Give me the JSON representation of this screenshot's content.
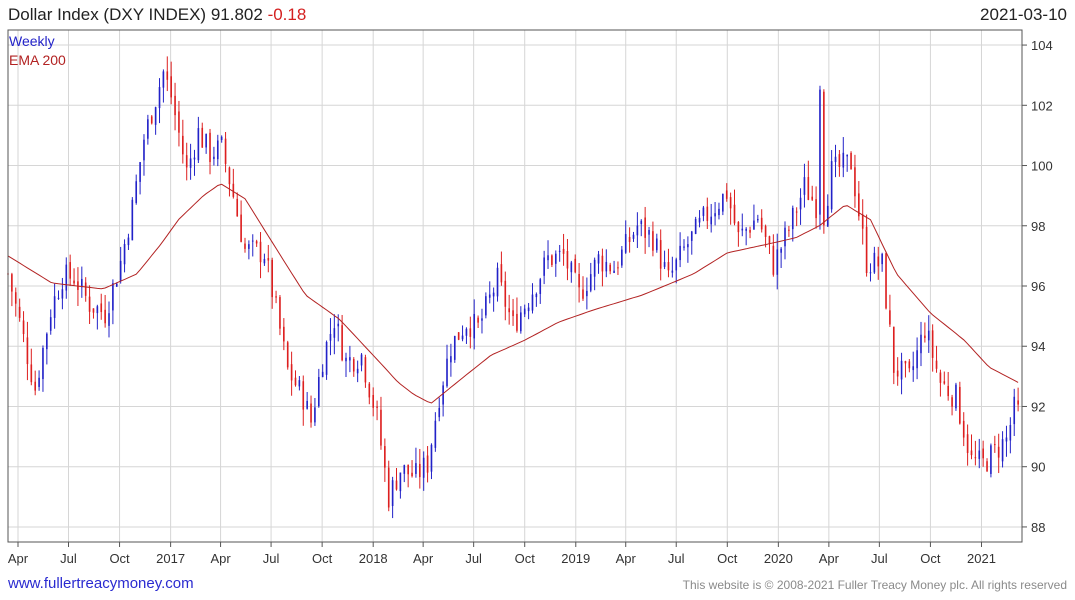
{
  "header": {
    "title": "Dollar Index (DXY INDEX)",
    "last": "91.802",
    "change": "-0.18",
    "date": "2021-03-10"
  },
  "footer": {
    "site": "www.fullertreacymoney.com",
    "copyright": "This website is © 2008-2021 Fuller Treacy Money plc. All rights reserved"
  },
  "legend": {
    "period": "Weekly",
    "ema_label": "EMA 200"
  },
  "colors": {
    "up": "#2222c8",
    "down": "#dd1f1f",
    "ema": "#b22222",
    "grid": "#d6d6d6",
    "frame": "#555555"
  },
  "chart_data": {
    "type": "candlestick",
    "frequency": "weekly",
    "y_range": [
      87.5,
      104.5
    ],
    "y_ticks": [
      88,
      90,
      92,
      94,
      96,
      98,
      100,
      102,
      104
    ],
    "x_range": [
      "2016-03-14",
      "2021-03-15"
    ],
    "x_ticks": [
      {
        "date": "2016-04-01",
        "label": "Apr"
      },
      {
        "date": "2016-07-01",
        "label": "Jul"
      },
      {
        "date": "2016-10-01",
        "label": "Oct"
      },
      {
        "date": "2017-01-01",
        "label": "2017"
      },
      {
        "date": "2017-04-01",
        "label": "Apr"
      },
      {
        "date": "2017-07-01",
        "label": "Jul"
      },
      {
        "date": "2017-10-01",
        "label": "Oct"
      },
      {
        "date": "2018-01-01",
        "label": "2018"
      },
      {
        "date": "2018-04-01",
        "label": "Apr"
      },
      {
        "date": "2018-07-01",
        "label": "Jul"
      },
      {
        "date": "2018-10-01",
        "label": "Oct"
      },
      {
        "date": "2019-01-01",
        "label": "2019"
      },
      {
        "date": "2019-04-01",
        "label": "Apr"
      },
      {
        "date": "2019-07-01",
        "label": "Jul"
      },
      {
        "date": "2019-10-01",
        "label": "Oct"
      },
      {
        "date": "2020-01-01",
        "label": "2020"
      },
      {
        "date": "2020-04-01",
        "label": "Apr"
      },
      {
        "date": "2020-07-01",
        "label": "Jul"
      },
      {
        "date": "2020-10-01",
        "label": "Oct"
      },
      {
        "date": "2021-01-01",
        "label": "2021"
      }
    ],
    "close_anchors": [
      [
        "2016-03-14",
        96.4
      ],
      [
        "2016-04-04",
        94.8
      ],
      [
        "2016-05-02",
        92.6
      ],
      [
        "2016-05-30",
        95.2
      ],
      [
        "2016-06-20",
        96.3
      ],
      [
        "2016-07-11",
        96.3
      ],
      [
        "2016-08-08",
        95.4
      ],
      [
        "2016-09-05",
        95.1
      ],
      [
        "2016-10-03",
        96.8
      ],
      [
        "2016-10-24",
        98.6
      ],
      [
        "2016-11-14",
        100.9
      ],
      [
        "2016-12-19",
        103.1
      ],
      [
        "2017-01-02",
        102.3
      ],
      [
        "2017-01-30",
        99.8
      ],
      [
        "2017-02-20",
        101.1
      ],
      [
        "2017-03-13",
        100.4
      ],
      [
        "2017-04-03",
        100.6
      ],
      [
        "2017-04-24",
        99.0
      ],
      [
        "2017-05-15",
        97.2
      ],
      [
        "2017-06-19",
        97.1
      ],
      [
        "2017-07-10",
        95.2
      ],
      [
        "2017-07-31",
        93.2
      ],
      [
        "2017-08-28",
        92.3
      ],
      [
        "2017-09-11",
        91.5
      ],
      [
        "2017-10-02",
        93.6
      ],
      [
        "2017-10-23",
        94.9
      ],
      [
        "2017-11-13",
        93.5
      ],
      [
        "2017-12-11",
        93.7
      ],
      [
        "2018-01-08",
        91.6
      ],
      [
        "2018-01-29",
        89.0
      ],
      [
        "2018-02-19",
        89.9
      ],
      [
        "2018-03-19",
        89.7
      ],
      [
        "2018-04-09",
        90.1
      ],
      [
        "2018-04-30",
        92.4
      ],
      [
        "2018-05-21",
        94.0
      ],
      [
        "2018-06-18",
        94.8
      ],
      [
        "2018-07-09",
        94.6
      ],
      [
        "2018-08-13",
        96.2
      ],
      [
        "2018-09-10",
        94.7
      ],
      [
        "2018-10-08",
        95.6
      ],
      [
        "2018-11-12",
        96.9
      ],
      [
        "2018-12-10",
        97.0
      ],
      [
        "2019-01-07",
        95.7
      ],
      [
        "2019-02-11",
        96.9
      ],
      [
        "2019-03-11",
        96.6
      ],
      [
        "2019-04-22",
        98.0
      ],
      [
        "2019-05-20",
        97.6
      ],
      [
        "2019-06-17",
        96.2
      ],
      [
        "2019-07-15",
        97.2
      ],
      [
        "2019-08-19",
        98.2
      ],
      [
        "2019-09-30",
        99.1
      ],
      [
        "2019-10-21",
        97.6
      ],
      [
        "2019-11-25",
        98.3
      ],
      [
        "2019-12-23",
        96.7
      ],
      [
        "2020-01-20",
        97.9
      ],
      [
        "2020-02-17",
        99.3
      ],
      [
        "2020-03-09",
        98.7
      ],
      [
        "2020-03-16",
        102.8
      ],
      [
        "2020-03-23",
        98.4
      ],
      [
        "2020-04-06",
        99.8
      ],
      [
        "2020-05-11",
        100.1
      ],
      [
        "2020-06-08",
        96.8
      ],
      [
        "2020-07-06",
        96.7
      ],
      [
        "2020-07-27",
        93.3
      ],
      [
        "2020-08-24",
        92.9
      ],
      [
        "2020-09-21",
        94.6
      ],
      [
        "2020-10-19",
        92.8
      ],
      [
        "2020-11-16",
        92.3
      ],
      [
        "2020-12-14",
        90.2
      ],
      [
        "2021-01-04",
        90.1
      ],
      [
        "2021-01-25",
        90.5
      ],
      [
        "2021-02-15",
        90.9
      ],
      [
        "2021-03-01",
        91.9
      ],
      [
        "2021-03-08",
        91.8
      ]
    ],
    "ema_anchors": [
      [
        "2016-03-14",
        97.0
      ],
      [
        "2016-06-01",
        96.1
      ],
      [
        "2016-09-01",
        95.9
      ],
      [
        "2016-11-01",
        96.4
      ],
      [
        "2016-12-15",
        97.4
      ],
      [
        "2017-01-15",
        98.2
      ],
      [
        "2017-03-01",
        99.0
      ],
      [
        "2017-04-01",
        99.4
      ],
      [
        "2017-05-15",
        98.9
      ],
      [
        "2017-07-15",
        97.1
      ],
      [
        "2017-09-01",
        95.7
      ],
      [
        "2017-11-01",
        94.9
      ],
      [
        "2018-01-01",
        93.7
      ],
      [
        "2018-02-15",
        92.8
      ],
      [
        "2018-03-15",
        92.4
      ],
      [
        "2018-04-15",
        92.1
      ],
      [
        "2018-06-01",
        92.8
      ],
      [
        "2018-08-01",
        93.7
      ],
      [
        "2018-10-01",
        94.2
      ],
      [
        "2018-12-01",
        94.8
      ],
      [
        "2019-02-01",
        95.2
      ],
      [
        "2019-05-01",
        95.7
      ],
      [
        "2019-08-01",
        96.4
      ],
      [
        "2019-10-01",
        97.1
      ],
      [
        "2019-12-15",
        97.4
      ],
      [
        "2020-02-01",
        97.6
      ],
      [
        "2020-03-15",
        98.0
      ],
      [
        "2020-05-01",
        98.7
      ],
      [
        "2020-06-15",
        98.2
      ],
      [
        "2020-08-01",
        96.4
      ],
      [
        "2020-10-01",
        95.1
      ],
      [
        "2020-12-01",
        94.2
      ],
      [
        "2021-01-15",
        93.3
      ],
      [
        "2021-03-08",
        92.8
      ]
    ]
  }
}
